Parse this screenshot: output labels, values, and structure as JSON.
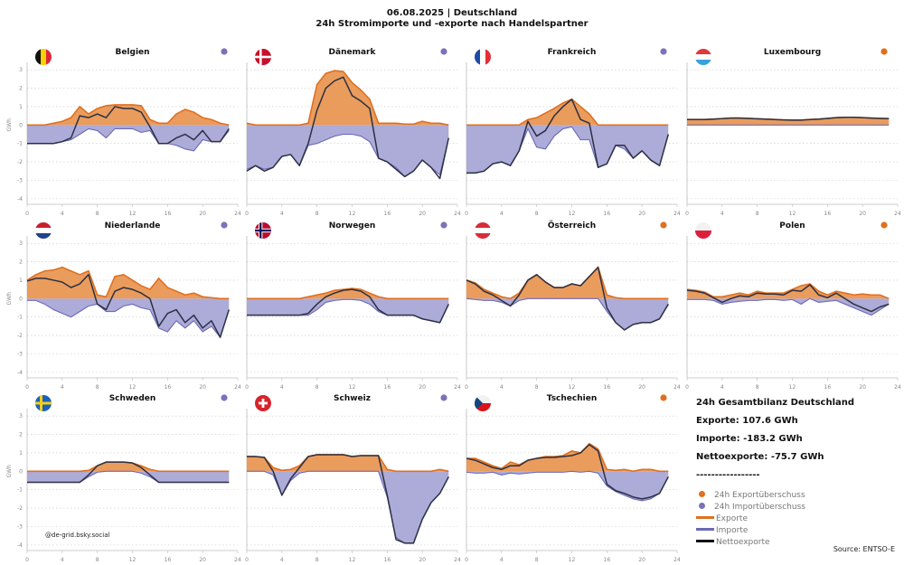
{
  "header": {
    "line1": "06.08.2025 | Deutschland",
    "line2": "24h Stromimporte und -exporte nach Handelspartner"
  },
  "colors": {
    "export": "#e07020",
    "export_fill": "#e8914a",
    "import": "#6b68b8",
    "import_fill": "#a9a7d6",
    "net": "#2b3044"
  },
  "y_axis_label": "GWh",
  "watermark": "@de-grid.bsky.social",
  "summary": {
    "title": "24h Gesamtbilanz Deutschland",
    "exports": "Exporte: 107.6 GWh",
    "imports": "Importe: -183.2 GWh",
    "net": "Nettoexporte: -75.7 GWh",
    "divider": "-----------------"
  },
  "legend": [
    {
      "label": "24h Exportüberschuss",
      "kind": "dot",
      "color": "#e07020"
    },
    {
      "label": "24h Importüberschuss",
      "kind": "dot",
      "color": "#7b73b8"
    },
    {
      "label": "Exporte",
      "kind": "line",
      "color": "#e07020"
    },
    {
      "label": "Importe",
      "kind": "line",
      "color": "#6b68b8"
    },
    {
      "label": "Nettoexporte",
      "kind": "line",
      "color": "#111111"
    }
  ],
  "source": "Source: ENTSO-E",
  "chart_data": {
    "type": "area",
    "x": [
      0,
      1,
      2,
      3,
      4,
      5,
      6,
      7,
      8,
      9,
      10,
      11,
      12,
      13,
      14,
      15,
      16,
      17,
      18,
      19,
      20,
      21,
      22,
      23
    ],
    "xticks": [
      0,
      4,
      8,
      12,
      16,
      20,
      24
    ],
    "ylim": [
      -4.3,
      3.4
    ],
    "yticks": [
      -4,
      -3,
      -2,
      -1,
      0,
      1,
      2,
      3
    ],
    "ylabel": "GWh",
    "panels": [
      {
        "name": "Belgien",
        "flag": "be",
        "status": "import",
        "exports": [
          0,
          0,
          0,
          0.1,
          0.2,
          0.4,
          1.0,
          0.6,
          0.9,
          1.05,
          1.1,
          1.1,
          1.1,
          1.05,
          0.3,
          0.1,
          0.1,
          0.6,
          0.85,
          0.7,
          0.4,
          0.3,
          0.1,
          0
        ],
        "imports": [
          -1,
          -1,
          -1,
          -1,
          -0.9,
          -0.8,
          -0.5,
          -0.2,
          -0.3,
          -0.7,
          -0.2,
          -0.2,
          -0.2,
          -0.4,
          -0.3,
          -1.0,
          -1.0,
          -1.1,
          -1.3,
          -1.4,
          -0.8,
          -0.9,
          -0.9,
          -0.3
        ],
        "net": [
          -1,
          -1,
          -1,
          -1,
          -0.9,
          -0.7,
          0.5,
          0.4,
          0.6,
          0.4,
          1.0,
          0.9,
          0.9,
          0.7,
          -0.1,
          -1.0,
          -1.0,
          -0.7,
          -0.5,
          -0.8,
          -0.3,
          -0.9,
          -0.9,
          -0.2
        ]
      },
      {
        "name": "Dänemark",
        "flag": "dk",
        "status": "import",
        "exports": [
          0.1,
          0,
          0,
          0,
          0,
          0,
          0,
          0.1,
          2.2,
          2.8,
          2.95,
          2.9,
          2.3,
          1.9,
          1.4,
          0.1,
          0.1,
          0.1,
          0.05,
          0.05,
          0.2,
          0.1,
          0.1,
          0
        ],
        "imports": [
          -2.4,
          -2.2,
          -2.4,
          -2.3,
          -1.7,
          -1.6,
          -2.2,
          -1.1,
          -1.0,
          -0.8,
          -0.6,
          -0.5,
          -0.5,
          -0.6,
          -0.9,
          -1.8,
          -2.0,
          -2.3,
          -2.8,
          -2.5,
          -1.9,
          -2.3,
          -2.7,
          -0.7
        ],
        "net": [
          -2.5,
          -2.2,
          -2.5,
          -2.3,
          -1.7,
          -1.6,
          -2.2,
          -1.0,
          0.8,
          2.0,
          2.4,
          2.6,
          1.6,
          1.3,
          0.9,
          -1.8,
          -2.0,
          -2.4,
          -2.8,
          -2.5,
          -1.9,
          -2.3,
          -2.9,
          -0.7
        ]
      },
      {
        "name": "Frankreich",
        "flag": "fr",
        "status": "import",
        "exports": [
          0,
          0,
          0,
          0,
          0,
          0,
          0,
          0.3,
          0.4,
          0.65,
          0.9,
          1.2,
          1.4,
          1.0,
          0.6,
          0,
          0,
          0,
          0,
          0,
          0,
          0,
          0,
          0
        ],
        "imports": [
          -2.6,
          -2.6,
          -2.5,
          -2.1,
          -2.0,
          -2.2,
          -1.4,
          -0.2,
          -1.2,
          -1.3,
          -0.6,
          -0.2,
          -0.1,
          -0.8,
          -0.8,
          -2.3,
          -2.1,
          -1.1,
          -1.3,
          -1.8,
          -1.4,
          -1.9,
          -2.2,
          -0.5
        ],
        "net": [
          -2.6,
          -2.6,
          -2.5,
          -2.1,
          -2.0,
          -2.2,
          -1.4,
          0.2,
          -0.6,
          -0.3,
          0.5,
          1.0,
          1.4,
          0.3,
          0.1,
          -2.3,
          -2.1,
          -1.1,
          -1.1,
          -1.8,
          -1.4,
          -1.9,
          -2.2,
          -0.5
        ]
      },
      {
        "name": "Luxembourg",
        "flag": "lu",
        "status": "export",
        "exports": [
          0.3,
          0.3,
          0.3,
          0.32,
          0.35,
          0.38,
          0.38,
          0.36,
          0.34,
          0.32,
          0.3,
          0.28,
          0.27,
          0.27,
          0.3,
          0.32,
          0.36,
          0.4,
          0.42,
          0.42,
          0.4,
          0.38,
          0.36,
          0.35
        ],
        "imports": [
          0,
          0,
          0,
          0,
          0,
          0,
          0,
          0,
          0,
          0,
          0,
          0,
          0,
          0,
          0,
          0,
          0,
          0,
          0,
          0,
          0,
          0,
          0,
          0
        ],
        "net": [
          0.3,
          0.3,
          0.3,
          0.32,
          0.35,
          0.38,
          0.38,
          0.36,
          0.34,
          0.32,
          0.3,
          0.28,
          0.27,
          0.27,
          0.3,
          0.32,
          0.36,
          0.4,
          0.42,
          0.42,
          0.4,
          0.38,
          0.36,
          0.35
        ]
      },
      {
        "name": "Niederlande",
        "flag": "nl",
        "status": "import",
        "exports": [
          1.0,
          1.3,
          1.5,
          1.55,
          1.7,
          1.5,
          1.3,
          1.5,
          0.2,
          0.1,
          1.2,
          1.3,
          1.0,
          0.7,
          0.5,
          1.1,
          0.6,
          0.4,
          0.2,
          0.3,
          0.1,
          0.05,
          0,
          0
        ],
        "imports": [
          -0.1,
          -0.1,
          -0.3,
          -0.6,
          -0.8,
          -1.0,
          -0.7,
          -0.4,
          -0.3,
          -0.7,
          -0.7,
          -0.4,
          -0.3,
          -0.5,
          -0.6,
          -1.6,
          -1.8,
          -1.2,
          -1.6,
          -1.2,
          -1.8,
          -1.5,
          -2.1,
          -0.6
        ],
        "net": [
          0.95,
          1.1,
          1.1,
          1.0,
          0.9,
          0.6,
          0.8,
          1.3,
          -0.3,
          -0.6,
          0.4,
          0.6,
          0.5,
          0.3,
          0.0,
          -1.5,
          -0.8,
          -0.6,
          -1.3,
          -0.9,
          -1.6,
          -1.2,
          -2.1,
          -0.6
        ]
      },
      {
        "name": "Norwegen",
        "flag": "no",
        "status": "import",
        "exports": [
          0,
          0,
          0,
          0,
          0,
          0,
          0,
          0.1,
          0.2,
          0.3,
          0.45,
          0.5,
          0.55,
          0.5,
          0.3,
          0.1,
          0,
          0,
          0,
          0,
          0,
          0,
          0,
          0
        ],
        "imports": [
          -0.9,
          -0.9,
          -0.9,
          -0.9,
          -0.9,
          -0.9,
          -0.9,
          -0.9,
          -0.6,
          -0.2,
          -0.1,
          -0.05,
          -0.05,
          -0.1,
          -0.3,
          -0.7,
          -0.9,
          -0.9,
          -0.9,
          -0.9,
          -1.1,
          -1.2,
          -1.3,
          -0.3
        ],
        "net": [
          -0.9,
          -0.9,
          -0.9,
          -0.9,
          -0.9,
          -0.9,
          -0.9,
          -0.8,
          -0.3,
          0.1,
          0.3,
          0.45,
          0.5,
          0.4,
          0.1,
          -0.6,
          -0.9,
          -0.9,
          -0.9,
          -0.9,
          -1.1,
          -1.2,
          -1.3,
          -0.3
        ]
      },
      {
        "name": "Österreich",
        "flag": "at",
        "status": "export",
        "exports": [
          1.0,
          0.85,
          0.5,
          0.3,
          0.1,
          0,
          0.3,
          1.0,
          1.3,
          0.9,
          0.6,
          0.6,
          0.8,
          0.7,
          1.2,
          1.7,
          0.2,
          0.05,
          0,
          0,
          0,
          0,
          0,
          0
        ],
        "imports": [
          0,
          -0.05,
          -0.1,
          -0.1,
          -0.2,
          -0.4,
          -0.1,
          0,
          0,
          0,
          0,
          0,
          0,
          0,
          0,
          0,
          -0.7,
          -1.3,
          -1.7,
          -1.4,
          -1.3,
          -1.3,
          -1.1,
          -0.3
        ],
        "net": [
          1.0,
          0.8,
          0.4,
          0.2,
          -0.1,
          -0.4,
          0.2,
          1.0,
          1.3,
          0.9,
          0.6,
          0.6,
          0.8,
          0.7,
          1.2,
          1.7,
          -0.5,
          -1.3,
          -1.7,
          -1.4,
          -1.3,
          -1.3,
          -1.1,
          -0.3
        ]
      },
      {
        "name": "Polen",
        "flag": "pl",
        "status": "export",
        "exports": [
          0.5,
          0.45,
          0.35,
          0.1,
          0.1,
          0.2,
          0.3,
          0.2,
          0.4,
          0.3,
          0.3,
          0.3,
          0.5,
          0.7,
          0.8,
          0.4,
          0.2,
          0.4,
          0.3,
          0.2,
          0.25,
          0.2,
          0.2,
          0
        ],
        "imports": [
          -0.05,
          -0.05,
          -0.05,
          -0.1,
          -0.3,
          -0.2,
          -0.15,
          -0.1,
          -0.1,
          -0.05,
          -0.05,
          -0.1,
          -0.05,
          -0.3,
          0,
          -0.2,
          -0.15,
          -0.1,
          -0.3,
          -0.5,
          -0.7,
          -0.9,
          -0.6,
          -0.3
        ],
        "net": [
          0.45,
          0.4,
          0.3,
          0.05,
          -0.2,
          0.0,
          0.15,
          0.1,
          0.3,
          0.25,
          0.25,
          0.2,
          0.45,
          0.4,
          0.75,
          0.2,
          0.05,
          0.3,
          0.0,
          -0.3,
          -0.5,
          -0.7,
          -0.45,
          -0.3
        ]
      },
      {
        "name": "Schweden",
        "flag": "se",
        "status": "import",
        "exports": [
          0,
          0,
          0,
          0,
          0,
          0,
          0,
          0.05,
          0.3,
          0.5,
          0.5,
          0.5,
          0.45,
          0.3,
          0.1,
          0,
          0,
          0,
          0,
          0,
          0,
          0,
          0,
          0
        ],
        "imports": [
          -0.6,
          -0.6,
          -0.6,
          -0.6,
          -0.6,
          -0.6,
          -0.6,
          -0.3,
          -0.05,
          0,
          0,
          0,
          0,
          -0.1,
          -0.3,
          -0.6,
          -0.6,
          -0.6,
          -0.6,
          -0.6,
          -0.6,
          -0.6,
          -0.6,
          -0.6
        ],
        "net": [
          -0.6,
          -0.6,
          -0.6,
          -0.6,
          -0.6,
          -0.6,
          -0.6,
          -0.2,
          0.3,
          0.5,
          0.5,
          0.5,
          0.45,
          0.2,
          -0.2,
          -0.6,
          -0.6,
          -0.6,
          -0.6,
          -0.6,
          -0.6,
          -0.6,
          -0.6,
          -0.6
        ]
      },
      {
        "name": "Schweiz",
        "flag": "ch",
        "status": "import",
        "exports": [
          0.8,
          0.8,
          0.75,
          0.2,
          0.05,
          0.1,
          0.3,
          0.8,
          0.9,
          0.9,
          0.9,
          0.9,
          0.8,
          0.85,
          0.85,
          0.85,
          0.1,
          0,
          0,
          0,
          0,
          0,
          0.1,
          0
        ],
        "imports": [
          0,
          0,
          0,
          -0.2,
          -1.3,
          -0.5,
          -0.1,
          0,
          0,
          0,
          0,
          0,
          0,
          0,
          0,
          0,
          -1.4,
          -3.6,
          -3.9,
          -3.9,
          -2.6,
          -1.7,
          -1.2,
          -0.3
        ],
        "net": [
          0.8,
          0.8,
          0.75,
          0.0,
          -1.3,
          -0.4,
          0.2,
          0.8,
          0.9,
          0.9,
          0.9,
          0.9,
          0.8,
          0.85,
          0.85,
          0.85,
          -1.3,
          -3.7,
          -3.9,
          -3.9,
          -2.6,
          -1.7,
          -1.2,
          -0.3
        ]
      },
      {
        "name": "Tschechien",
        "flag": "cz",
        "status": "export",
        "exports": [
          0.7,
          0.7,
          0.5,
          0.3,
          0.15,
          0.5,
          0.35,
          0.6,
          0.7,
          0.8,
          0.8,
          0.85,
          1.1,
          1.0,
          1.5,
          1.2,
          0.1,
          0.05,
          0.1,
          0,
          0.1,
          0.1,
          0,
          0
        ],
        "imports": [
          -0.05,
          -0.1,
          -0.1,
          -0.05,
          -0.2,
          -0.1,
          -0.15,
          -0.1,
          -0.05,
          -0.05,
          -0.05,
          -0.05,
          0,
          -0.05,
          0,
          -0.1,
          -0.8,
          -1.1,
          -1.3,
          -1.5,
          -1.6,
          -1.5,
          -1.2,
          -0.3
        ],
        "net": [
          0.7,
          0.6,
          0.4,
          0.2,
          0.1,
          0.3,
          0.3,
          0.6,
          0.7,
          0.75,
          0.75,
          0.8,
          0.85,
          1.0,
          1.45,
          1.1,
          -0.7,
          -1.05,
          -1.2,
          -1.4,
          -1.5,
          -1.4,
          -1.2,
          -0.3
        ]
      }
    ]
  }
}
